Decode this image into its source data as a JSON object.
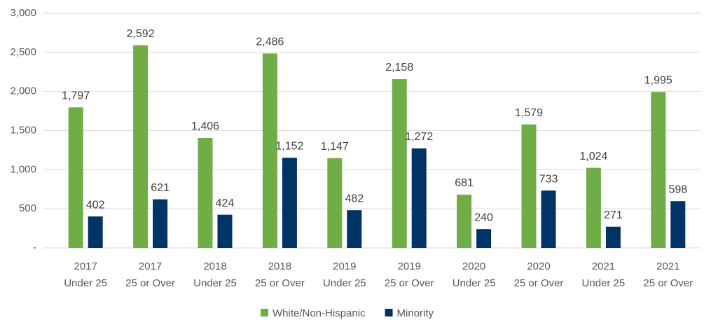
{
  "chart_data": {
    "type": "bar",
    "categories": [
      [
        "2017",
        "Under 25"
      ],
      [
        "2017",
        "25 or Over"
      ],
      [
        "2018",
        "Under 25"
      ],
      [
        "2018",
        "25 or Over"
      ],
      [
        "2019",
        "Under 25"
      ],
      [
        "2019",
        "25 or Over"
      ],
      [
        "2020",
        "Under 25"
      ],
      [
        "2020",
        "25 or Over"
      ],
      [
        "2021",
        "Under 25"
      ],
      [
        "2021",
        "25 or Over"
      ]
    ],
    "series": [
      {
        "name": "White/Non-Hispanic",
        "color": "#70ad47",
        "values": [
          1797,
          2592,
          1406,
          2486,
          1147,
          2158,
          681,
          1579,
          1024,
          1995
        ],
        "value_labels": [
          "1,797",
          "2,592",
          "1,406",
          "2,486",
          "1,147",
          "2,158",
          "681",
          "1,579",
          "1,024",
          "1,995"
        ]
      },
      {
        "name": "Minority",
        "color": "#003366",
        "values": [
          402,
          621,
          424,
          1152,
          482,
          1272,
          240,
          733,
          271,
          598
        ],
        "value_labels": [
          "402",
          "621",
          "424",
          "1,152",
          "482",
          "1,272",
          "240",
          "733",
          "271",
          "598"
        ]
      }
    ],
    "ylim": [
      0,
      3000
    ],
    "yticks": [
      {
        "value": 0,
        "label": "-"
      },
      500,
      {
        "value": 1000,
        "label": "1,000"
      },
      {
        "value": 1500,
        "label": "1,500"
      },
      {
        "value": 2000,
        "label": "2,000"
      },
      {
        "value": 2500,
        "label": "2,500"
      },
      {
        "value": 3000,
        "label": "3,000"
      }
    ],
    "grid": true,
    "legend": "bottom"
  }
}
